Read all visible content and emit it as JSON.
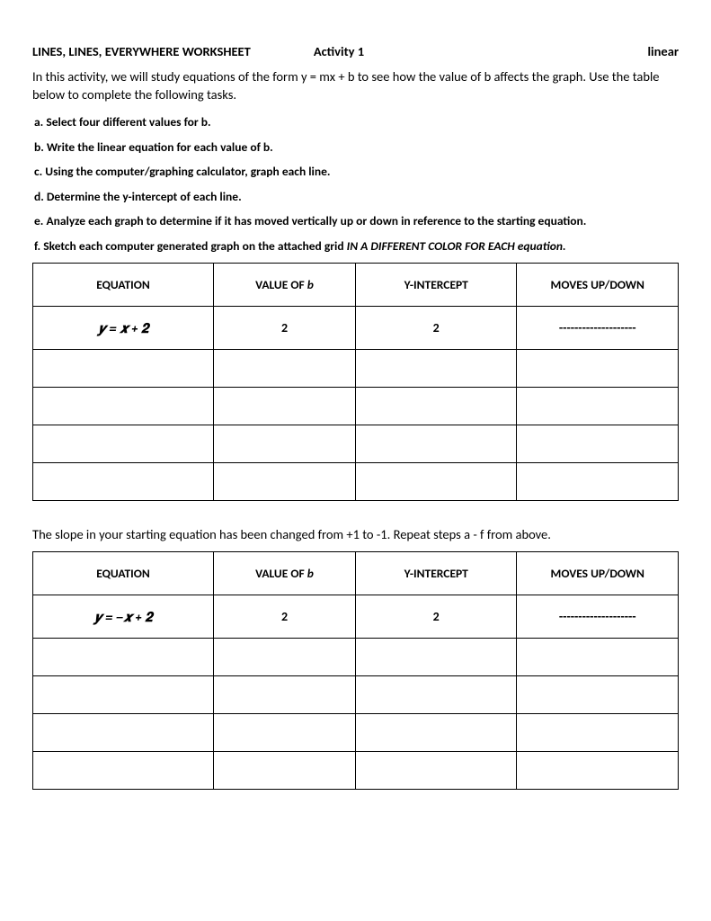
{
  "header": {
    "title": "LINES, LINES, EVERYWHERE WORKSHEET",
    "activity": "Activity 1",
    "tag": "linear"
  },
  "intro": "In this activity, we will study equations of the form y = mx + b to see how the value of b affects the graph. Use the table below to complete the following tasks.",
  "instructions": {
    "a": "a. Select four different values for b.",
    "b": "b. Write the linear equation for each value of b.",
    "c": "c. Using the computer/graphing calculator, graph each line.",
    "d": "d. Determine the y-intercept of each line.",
    "e": "e. Analyze each graph to determine if it has moved vertically up or down in reference to the starting equation.",
    "f_prefix": "f. Sketch each computer generated graph on the attached grid ",
    "f_italic": "IN A DIFFERENT COLOR FOR EACH equation.",
    "f_suffix": ""
  },
  "table_headers": {
    "equation": "EQUATION",
    "value_b_prefix": "VALUE OF ",
    "value_b_var": "b",
    "y_intercept": "Y-INTERCEPT",
    "moves": "MOVES UP/DOWN"
  },
  "table1": {
    "row1": {
      "equation_html": "𝒚 = 𝒙 + 𝟐",
      "value_b": "2",
      "y_intercept": "2",
      "moves": "--------------------"
    }
  },
  "mid_text": "The slope in your starting equation has been changed from +1 to -1. Repeat steps a - f from above.",
  "table2": {
    "row1": {
      "equation_html": "𝒚 = −𝒙 + 𝟐",
      "value_b": "2",
      "y_intercept": "2",
      "moves": "--------------------"
    }
  }
}
